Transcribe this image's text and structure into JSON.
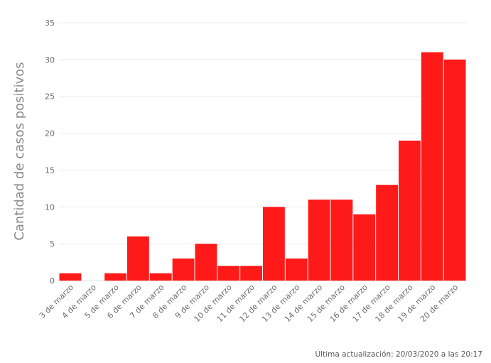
{
  "chart_data": {
    "type": "bar",
    "title": "",
    "xlabel": "",
    "ylabel": "Cantidad de casos positivos",
    "ylim": [
      0,
      35
    ],
    "yticks": [
      0,
      5,
      10,
      15,
      20,
      25,
      30,
      35
    ],
    "grid": true,
    "legend": "none",
    "bar_color": "#ff1a1a",
    "categories": [
      "3 de marzo",
      "4 de marzo",
      "5 de marzo",
      "6 de marzo",
      "7 de marzo",
      "8 de marzo",
      "9 de marzo",
      "10 de marzo",
      "11 de marzo",
      "12 de marzo",
      "13 de marzo",
      "14 de marzo",
      "15 de marzo",
      "16 de marzo",
      "17 de marzo",
      "18 de marzo",
      "19 de marzo",
      "20 de marzo"
    ],
    "values": [
      1,
      0,
      1,
      6,
      1,
      3,
      5,
      2,
      2,
      10,
      3,
      11,
      11,
      9,
      13,
      19,
      31,
      30
    ]
  },
  "footer": {
    "update_text": "Última actualización: 20/03/2020 a las 20:17"
  }
}
